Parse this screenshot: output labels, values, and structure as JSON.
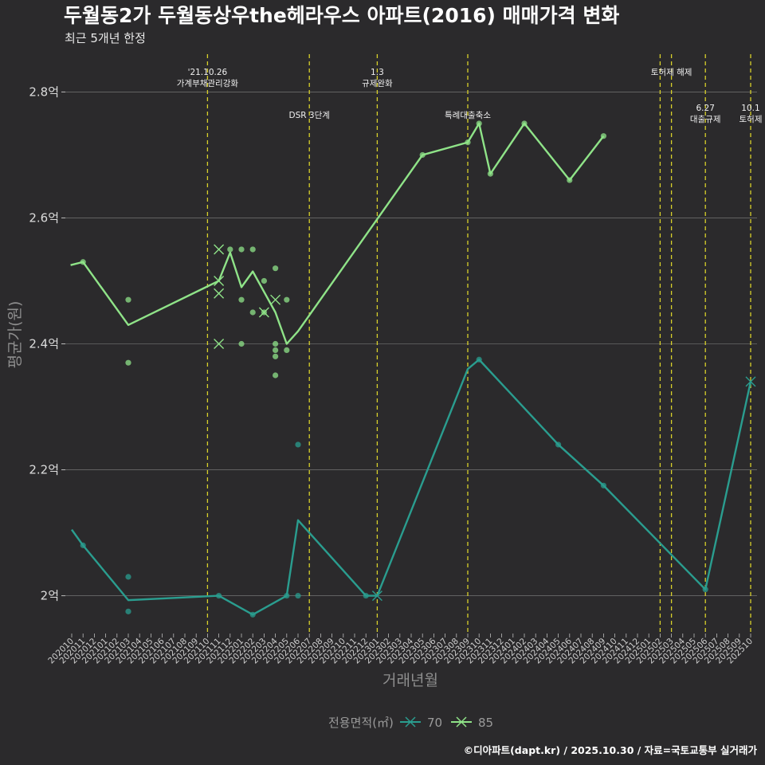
{
  "title": "두월동2가 두월동상우the헤라우스 아파트(2016) 매매가격 변화",
  "subtitle": "최근 5개년 한정",
  "caption": "©디아파트(dapt.kr) / 2025.10.30 / 자료=국토교통부 실거래가",
  "colors": {
    "background": "#2b2a2c",
    "grid": "#6a6a6a",
    "event": "#d8d02a",
    "s70": "#2a9d8f",
    "s85": "#8fe388"
  },
  "chart_data": {
    "type": "line",
    "xlabel": "거래년월",
    "ylabel": "평균가(원)",
    "ylim": [
      1.94,
      2.86
    ],
    "yticks": [
      2.0,
      2.2,
      2.4,
      2.6,
      2.8
    ],
    "ytick_labels": [
      "2억",
      "2.2억",
      "2.4억",
      "2.6억",
      "2.8억"
    ],
    "x_months": [
      "202010",
      "202011",
      "202012",
      "202101",
      "202102",
      "202103",
      "202104",
      "202105",
      "202106",
      "202107",
      "202108",
      "202109",
      "202110",
      "202111",
      "202112",
      "202201",
      "202202",
      "202203",
      "202204",
      "202205",
      "202206",
      "202207",
      "202208",
      "202209",
      "202210",
      "202211",
      "202212",
      "202301",
      "202302",
      "202303",
      "202304",
      "202305",
      "202306",
      "202307",
      "202308",
      "202309",
      "202310",
      "202311",
      "202312",
      "202401",
      "202402",
      "202403",
      "202404",
      "202405",
      "202406",
      "202407",
      "202408",
      "202409",
      "202410",
      "202411",
      "202412",
      "202501",
      "202502",
      "202503",
      "202504",
      "202505",
      "202506",
      "202507",
      "202508",
      "202509",
      "202510"
    ],
    "legend_title": "전용면적(㎡)",
    "legend_position": "bottom",
    "series": [
      {
        "name": "70",
        "color": "#2a9d8f",
        "line": [
          [
            0,
            2.105
          ],
          [
            1,
            2.08
          ],
          [
            5,
            1.993
          ],
          [
            13,
            2.0
          ],
          [
            16,
            1.97
          ],
          [
            19,
            2.0
          ],
          [
            20,
            2.12
          ],
          [
            26,
            2.0
          ],
          [
            27,
            2.0
          ],
          [
            35,
            2.36
          ],
          [
            36,
            2.375
          ],
          [
            43,
            2.24
          ],
          [
            47,
            2.175
          ],
          [
            56,
            2.01
          ],
          [
            60,
            2.34
          ]
        ],
        "points": [
          [
            1,
            2.08
          ],
          [
            5,
            2.03
          ],
          [
            5,
            1.975
          ],
          [
            13,
            2.0
          ],
          [
            16,
            1.97
          ],
          [
            19,
            2.0
          ],
          [
            20,
            2.24
          ],
          [
            20,
            2.0
          ],
          [
            26,
            2.0
          ],
          [
            36,
            2.375
          ],
          [
            43,
            2.24
          ],
          [
            47,
            2.175
          ],
          [
            56,
            2.01
          ]
        ],
        "cross_points": [
          [
            27,
            2.0
          ],
          [
            60,
            2.34
          ]
        ]
      },
      {
        "name": "85",
        "color": "#8fe388",
        "line": [
          [
            -0.1,
            2.525
          ],
          [
            1,
            2.53
          ],
          [
            5,
            2.43
          ],
          [
            13,
            2.5
          ],
          [
            14,
            2.545
          ],
          [
            15,
            2.49
          ],
          [
            16,
            2.515
          ],
          [
            18,
            2.45
          ],
          [
            19,
            2.4
          ],
          [
            20,
            2.42
          ],
          [
            31,
            2.7
          ],
          [
            35,
            2.72
          ],
          [
            36,
            2.75
          ],
          [
            37,
            2.67
          ],
          [
            40,
            2.75
          ],
          [
            44,
            2.66
          ],
          [
            47,
            2.73
          ]
        ],
        "points": [
          [
            1,
            2.53
          ],
          [
            5,
            2.47
          ],
          [
            5,
            2.37
          ],
          [
            14,
            2.55
          ],
          [
            15,
            2.55
          ],
          [
            15,
            2.47
          ],
          [
            15,
            2.4
          ],
          [
            16,
            2.55
          ],
          [
            16,
            2.45
          ],
          [
            17,
            2.5
          ],
          [
            17,
            2.45
          ],
          [
            18,
            2.52
          ],
          [
            18,
            2.4
          ],
          [
            18,
            2.39
          ],
          [
            18,
            2.38
          ],
          [
            18,
            2.35
          ],
          [
            19,
            2.47
          ],
          [
            19,
            2.39
          ],
          [
            31,
            2.7
          ],
          [
            35,
            2.72
          ],
          [
            36,
            2.75
          ],
          [
            37,
            2.67
          ],
          [
            40,
            2.75
          ],
          [
            44,
            2.66
          ],
          [
            47,
            2.73
          ]
        ],
        "cross_points": [
          [
            13,
            2.55
          ],
          [
            13,
            2.5
          ],
          [
            13,
            2.48
          ],
          [
            13,
            2.4
          ],
          [
            17,
            2.45
          ],
          [
            18,
            2.47
          ]
        ]
      }
    ],
    "events": [
      {
        "x": 12,
        "lines": [
          "'21.10.26",
          "가계부채관리강화"
        ],
        "row": 1
      },
      {
        "x": 21,
        "lines": [
          "DSR 3단계"
        ],
        "row": 2
      },
      {
        "x": 27,
        "lines": [
          "1.3",
          "규제완화"
        ],
        "row": 1
      },
      {
        "x": 35,
        "lines": [
          "특례대출축소"
        ],
        "row": 2
      },
      {
        "x": 52,
        "lines": [],
        "row": 1
      },
      {
        "x": 53,
        "lines": [
          "토허제 해제"
        ],
        "row": 1
      },
      {
        "x": 56,
        "lines": [
          "6.27",
          "대출규제"
        ],
        "row": 3
      },
      {
        "x": 60,
        "lines": [
          "10.1",
          "토허제"
        ],
        "row": 3
      }
    ]
  }
}
